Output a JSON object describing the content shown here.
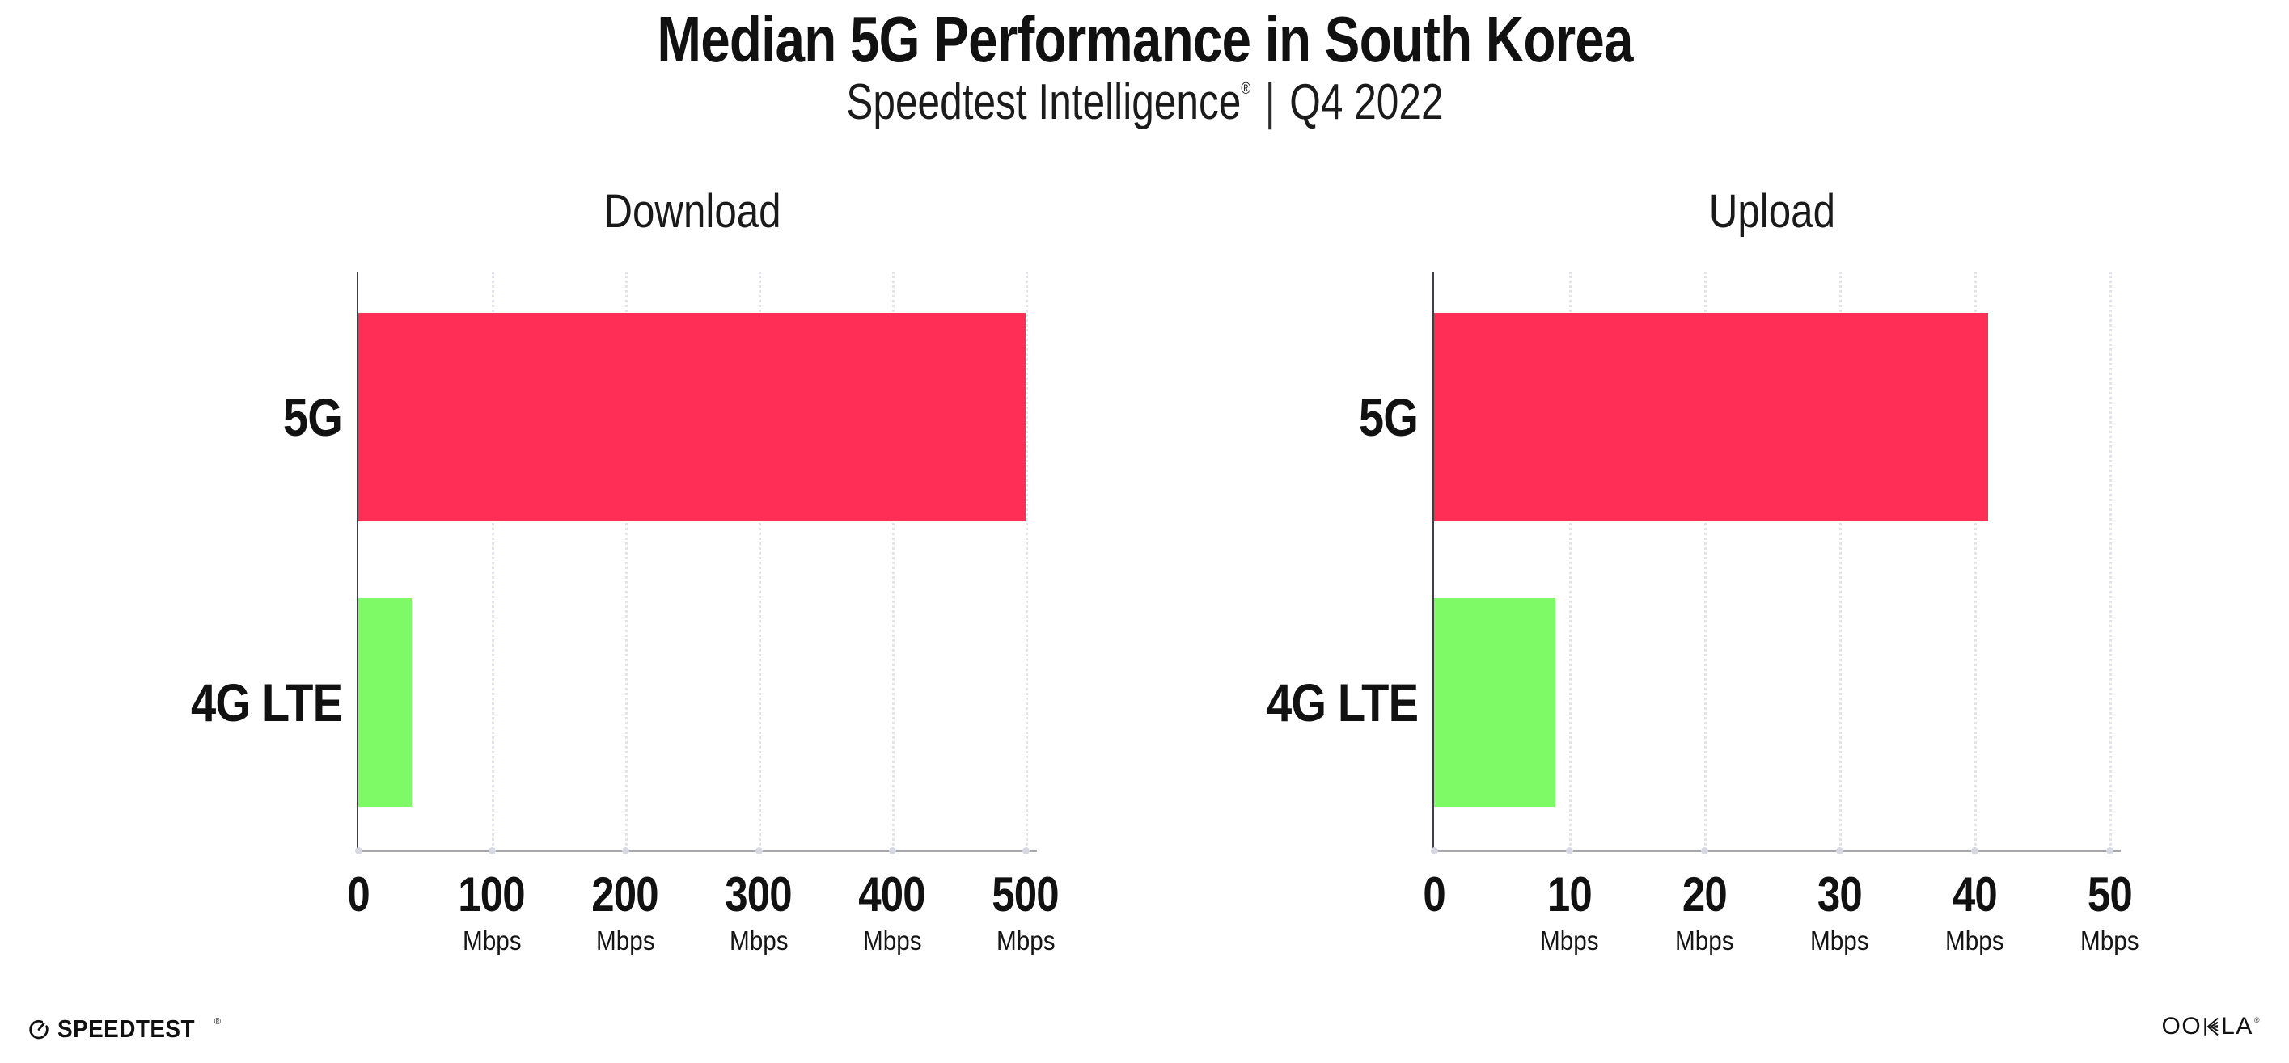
{
  "header": {
    "title": "Median 5G Performance in South Korea",
    "subtitle_brand": "Speedtest Intelligence",
    "subtitle_reg": "®",
    "subtitle_separator": "|",
    "subtitle_period": "Q4 2022"
  },
  "chart_data": [
    {
      "type": "bar",
      "orientation": "horizontal",
      "title": "Download",
      "categories": [
        "5G",
        "4G LTE"
      ],
      "values": [
        500,
        40
      ],
      "unit": "Mbps",
      "xlabel": "",
      "ylabel": "",
      "xlim": [
        0,
        500
      ],
      "x_ticks": [
        0,
        100,
        200,
        300,
        400,
        500
      ],
      "x_tick_labels": [
        "0",
        "100",
        "200",
        "300",
        "400",
        "500"
      ],
      "bar_colors": [
        "#ff2e56",
        "#7dfa65"
      ],
      "grid": "vertical-dotted",
      "legend": "none"
    },
    {
      "type": "bar",
      "orientation": "horizontal",
      "title": "Upload",
      "categories": [
        "5G",
        "4G LTE"
      ],
      "values": [
        41,
        9
      ],
      "unit": "Mbps",
      "xlabel": "",
      "ylabel": "",
      "xlim": [
        0,
        50
      ],
      "x_ticks": [
        0,
        10,
        20,
        30,
        40,
        50
      ],
      "x_tick_labels": [
        "0",
        "10",
        "20",
        "30",
        "40",
        "50"
      ],
      "bar_colors": [
        "#ff2e56",
        "#7dfa65"
      ],
      "grid": "vertical-dotted",
      "legend": "none"
    }
  ],
  "footer": {
    "speedtest_text": "SPEEDTEST",
    "speedtest_reg": "®",
    "ookla_left": "OO",
    "ookla_right": "LA",
    "ookla_reg": "®"
  },
  "colors": {
    "bar_5g": "#ff2e56",
    "bar_4g_lte": "#7dfa65",
    "gridline": "#e3e3ec",
    "y_axis": "#3e3e48",
    "x_axis": "#a8a8ac",
    "text": "#111111",
    "background": "#ffffff"
  }
}
